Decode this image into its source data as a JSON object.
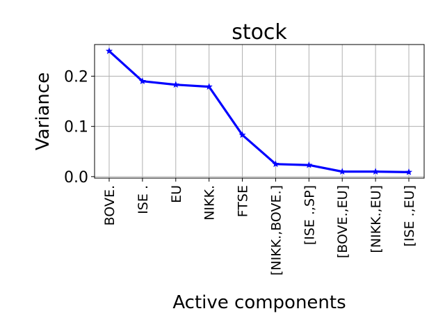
{
  "chart_data": {
    "type": "line",
    "title": "stock",
    "xlabel": "Active components",
    "ylabel": "Variance",
    "categories": [
      "BOVE.",
      "ISE .",
      "EU",
      "NIKK.",
      "FTSE",
      "[NIKK.,BOVE.]",
      "[ISE .,SP]",
      "[BOVE.,EU]",
      "[NIKK.,EU]",
      "[ISE .,EU]"
    ],
    "series": [
      {
        "values": [
          0.25,
          0.19,
          0.183,
          0.179,
          0.083,
          0.025,
          0.023,
          0.01,
          0.01,
          0.009
        ],
        "color": "#0000ff",
        "marker": "star"
      }
    ],
    "ylim": [
      -0.003,
      0.263
    ],
    "yticks": [
      0.0,
      0.1,
      0.2
    ],
    "ytick_labels": [
      "0.0",
      "0.1",
      "0.2"
    ],
    "grid": true,
    "legend": "none"
  }
}
